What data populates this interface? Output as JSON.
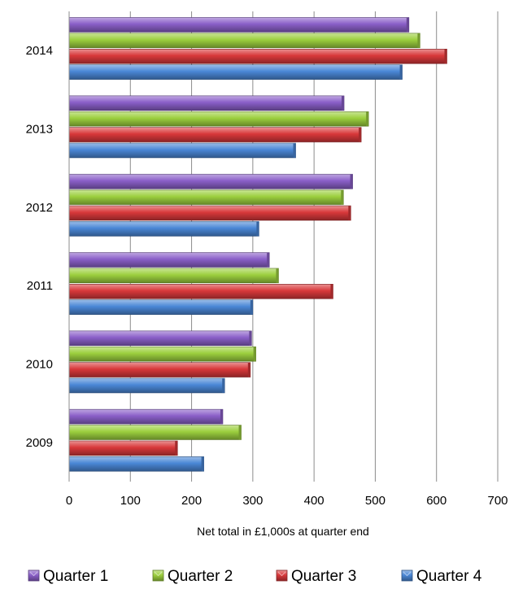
{
  "chart_data": {
    "type": "bar",
    "orientation": "horizontal",
    "categories": [
      "2009",
      "2010",
      "2011",
      "2012",
      "2013",
      "2014"
    ],
    "series": [
      {
        "name": "Quarter 1",
        "values": [
          251,
          298,
          327,
          463,
          449,
          555
        ],
        "color": "#8a5fc8"
      },
      {
        "name": "Quarter 2",
        "values": [
          281,
          305,
          342,
          448,
          489,
          573
        ],
        "color": "#9ccf3e"
      },
      {
        "name": "Quarter 3",
        "values": [
          177,
          296,
          431,
          460,
          477,
          617
        ],
        "color": "#d8383a"
      },
      {
        "name": "Quarter 4",
        "values": [
          220,
          254,
          300,
          310,
          370,
          544
        ],
        "color": "#4a87d6"
      }
    ],
    "xlabel": "Net total in £1,000s at quarter end",
    "xlim": [
      0,
      700
    ],
    "xticks": [
      "0",
      "100",
      "200",
      "300",
      "400",
      "500",
      "600",
      "700"
    ],
    "grid": true,
    "legend_position": "bottom"
  }
}
